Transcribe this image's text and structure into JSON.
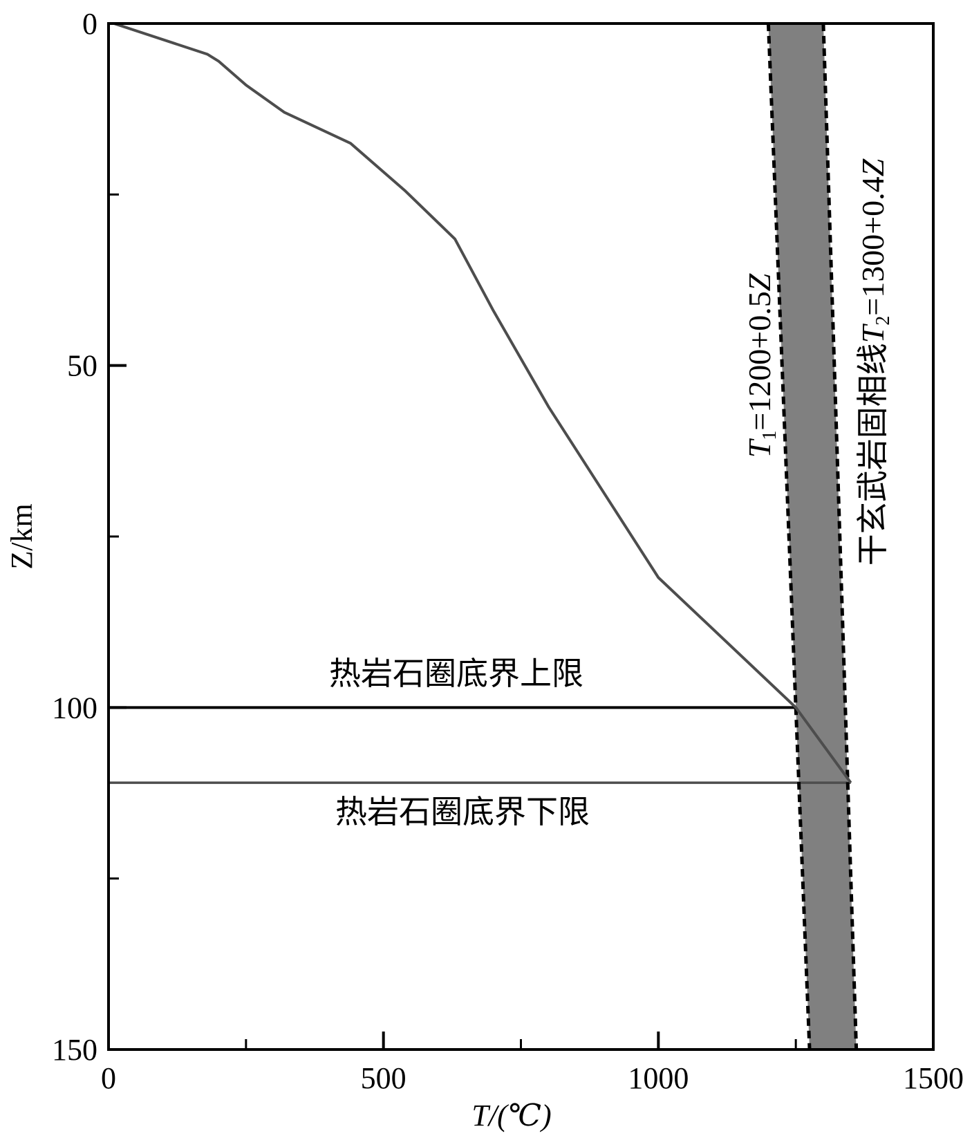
{
  "chart_data": {
    "type": "line",
    "xlabel": "T/(℃)",
    "ylabel": "Z/km",
    "xlim": [
      0,
      1500
    ],
    "ylim": [
      150,
      0
    ],
    "y_inverted": true,
    "grid": false,
    "x_major_ticks": [
      0,
      500,
      1000,
      1500
    ],
    "x_minor_ticks": [
      250,
      750,
      1250
    ],
    "y_major_ticks": [
      0,
      50,
      100,
      150
    ],
    "y_minor_ticks": [
      25,
      75,
      125
    ],
    "series": [
      {
        "kind": "geotherm",
        "color": "#4d4d4d",
        "points": [
          [
            10,
            0
          ],
          [
            180,
            4.5
          ],
          [
            200,
            5.5
          ],
          [
            250,
            9
          ],
          [
            320,
            13
          ],
          [
            440,
            17.5
          ],
          [
            540,
            24.5
          ],
          [
            630,
            31.5
          ],
          [
            700,
            42
          ],
          [
            800,
            56
          ],
          [
            1000,
            81
          ],
          [
            1250,
            100
          ],
          [
            1350,
            111
          ]
        ]
      },
      {
        "kind": "solidus-lower",
        "label_prefix": "T",
        "label_sub": "1",
        "label_suffix": "=1200+0.5",
        "label_var": "Z",
        "style": "dashed",
        "color": "#000000",
        "intercept": 1200,
        "slope": 0.5
      },
      {
        "kind": "solidus-upper",
        "label_prefix": "干玄武岩固相线",
        "label_var1": "T",
        "label_sub": "2",
        "label_suffix": "=1300+0.4",
        "label_var2": "Z",
        "style": "dashed",
        "color": "#000000",
        "intercept": 1300,
        "slope": 0.4
      }
    ],
    "band_fill": "#808080",
    "boundaries": [
      {
        "label": "热岩石圈底界上限",
        "depth": 100,
        "t_end": 1250,
        "color": "#000000"
      },
      {
        "label": "热岩石圈底界下限",
        "depth": 111,
        "t_end": 1350,
        "color": "#4d4d4d"
      }
    ]
  }
}
